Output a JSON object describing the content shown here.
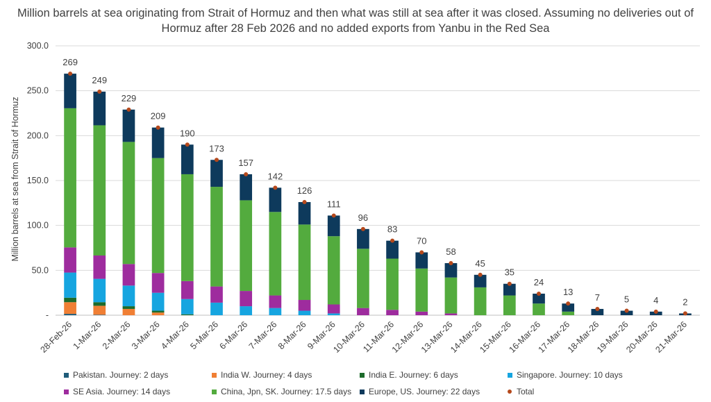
{
  "chart_data": {
    "type": "bar",
    "stacked": true,
    "title": "Million barrels at sea originating from Strait of Hormuz and then what was still at sea after it was closed. Assuming no deliveries out of Hormuz after 28 Feb 2026 and no added exports from Yanbu in the Red Sea",
    "ylabel": "Million barrels at sea from Strait of Hormuz",
    "xlabel": "",
    "ylim": [
      0,
      300
    ],
    "yticks": [
      "-",
      "50.0",
      "100.0",
      "150.0",
      "200.0",
      "250.0",
      "300.0"
    ],
    "grid": true,
    "legend_position": "bottom",
    "categories": [
      "28-Feb-26",
      "1-Mar-26",
      "2-Mar-26",
      "3-Mar-26",
      "4-Mar-26",
      "5-Mar-26",
      "6-Mar-26",
      "7-Mar-26",
      "8-Mar-26",
      "9-Mar-26",
      "10-Mar-26",
      "11-Mar-26",
      "12-Mar-26",
      "13-Mar-26",
      "14-Mar-26",
      "15-Mar-26",
      "16-Mar-26",
      "17-Mar-26",
      "18-Mar-26",
      "19-Mar-26",
      "20-Mar-26",
      "21-Mar-26"
    ],
    "series": [
      {
        "name": "Pakistan. Journey: 2 days",
        "color": "#1F5C7A",
        "values": [
          1.5,
          0.5,
          0,
          0,
          0,
          0,
          0,
          0,
          0,
          0,
          0,
          0,
          0,
          0,
          0,
          0,
          0,
          0,
          0,
          0,
          0,
          0
        ]
      },
      {
        "name": "India W. Journey: 4 days",
        "color": "#F07F34",
        "values": [
          13,
          10,
          7,
          3,
          0,
          0,
          0,
          0,
          0,
          0,
          0,
          0,
          0,
          0,
          0,
          0,
          0,
          0,
          0,
          0,
          0,
          0
        ]
      },
      {
        "name": "India E. Journey: 6 days",
        "color": "#1D6B2B",
        "values": [
          5,
          4,
          3,
          2,
          1,
          0,
          0,
          0,
          0,
          0,
          0,
          0,
          0,
          0,
          0,
          0,
          0,
          0,
          0,
          0,
          0,
          0
        ]
      },
      {
        "name": "Singapore. Journey: 10 days",
        "color": "#16A5E0",
        "values": [
          28,
          26,
          23,
          20,
          17,
          14,
          10,
          8,
          5,
          2,
          0,
          0,
          0,
          0,
          0,
          0,
          0,
          0,
          0,
          0,
          0,
          0
        ]
      },
      {
        "name": "SE Asia. Journey: 14 days",
        "color": "#9E2C9E",
        "values": [
          28,
          26,
          24,
          22,
          20,
          18,
          17,
          14,
          12,
          10,
          8,
          6,
          4,
          2,
          0,
          0,
          0,
          0,
          0,
          0,
          0,
          0
        ]
      },
      {
        "name": "China, Jpn, SK. Journey: 17.5 days",
        "color": "#53AB3E",
        "values": [
          155,
          145,
          136,
          128,
          119,
          111,
          101,
          93,
          84,
          76,
          66,
          57,
          48,
          40,
          31,
          22,
          13,
          4,
          0,
          0,
          0,
          0
        ]
      },
      {
        "name": "Europe, US. Journey: 22 days",
        "color": "#0E3A5C",
        "values": [
          38.5,
          37.5,
          36,
          34,
          33,
          30,
          29,
          27,
          25,
          23,
          22,
          20,
          18,
          16,
          14,
          13,
          11,
          9,
          7,
          5,
          4,
          2
        ]
      }
    ],
    "totals": {
      "name": "Total",
      "color": "#B5491C",
      "values": [
        269,
        249,
        229,
        209,
        190,
        173,
        157,
        142,
        126,
        111,
        96,
        83,
        70,
        58,
        45,
        35,
        24,
        13,
        7,
        5,
        4,
        2
      ]
    }
  }
}
